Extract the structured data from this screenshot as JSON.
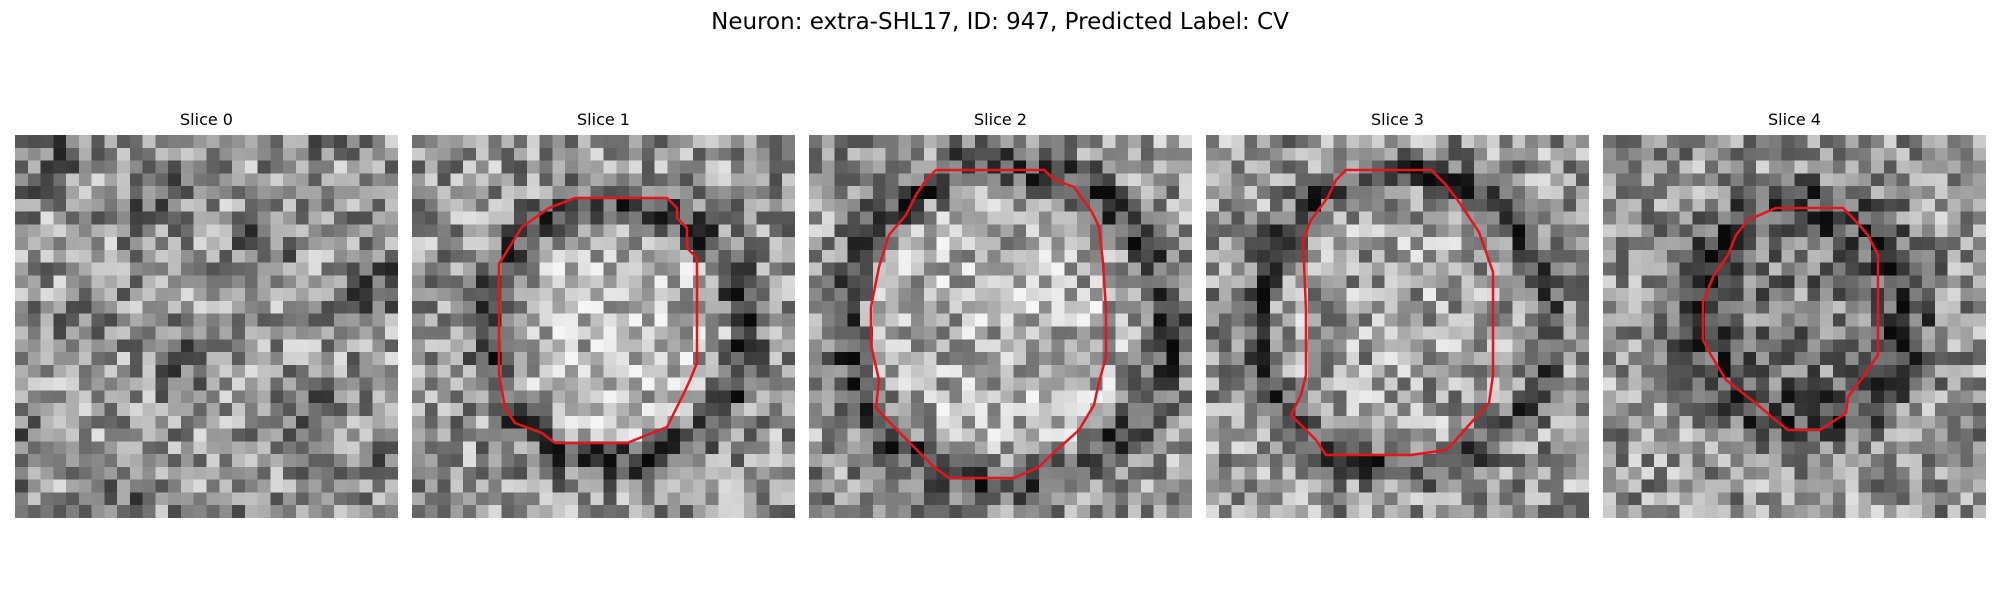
{
  "figure": {
    "title": "Neuron: extra-SHL17, ID: 947, Predicted Label: CV"
  },
  "slices": [
    {
      "label": "Slice 0",
      "has_contour": false
    },
    {
      "label": "Slice 1",
      "has_contour": true
    },
    {
      "label": "Slice 2",
      "has_contour": true
    },
    {
      "label": "Slice 3",
      "has_contour": true
    },
    {
      "label": "Slice 4",
      "has_contour": true
    }
  ],
  "colors": {
    "contour": "#e8141c",
    "background": "#ffffff"
  }
}
